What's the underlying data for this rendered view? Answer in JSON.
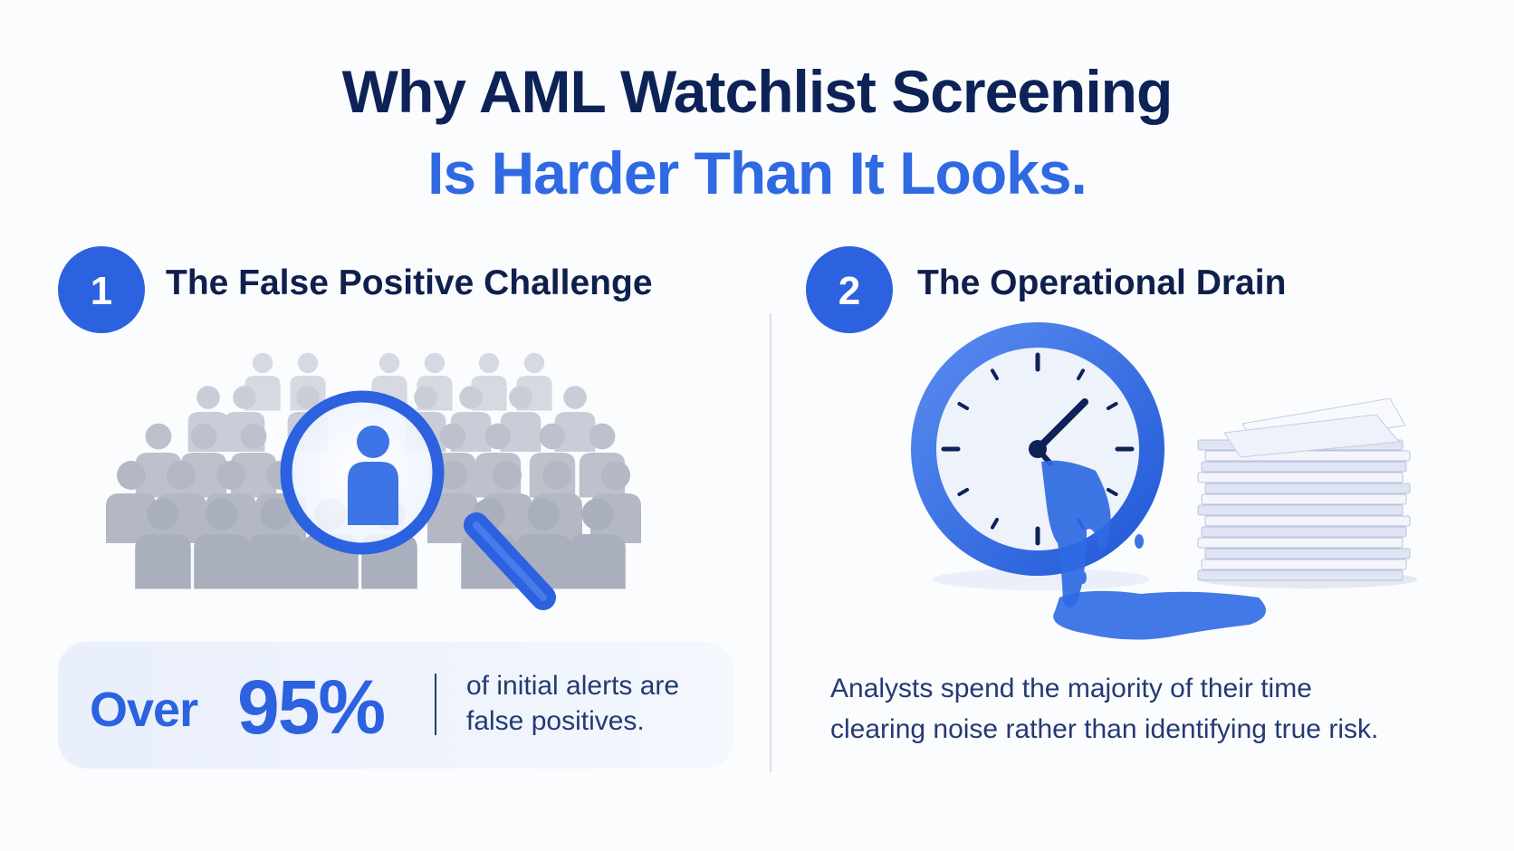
{
  "header": {
    "title_line1": "Why AML Watchlist Screening",
    "title_line2": "Is Harder Than It Looks."
  },
  "sections": [
    {
      "number": "1",
      "heading": "The False Positive Challenge",
      "stat": {
        "prefix": "Over",
        "value": "95%",
        "text_lines": [
          "of initial alerts are",
          "false positives."
        ]
      }
    },
    {
      "number": "2",
      "heading": "The Operational Drain",
      "text_lines": [
        "Analysts spend the majority of their time",
        "clearing noise rather than identifying true risk."
      ]
    }
  ]
}
